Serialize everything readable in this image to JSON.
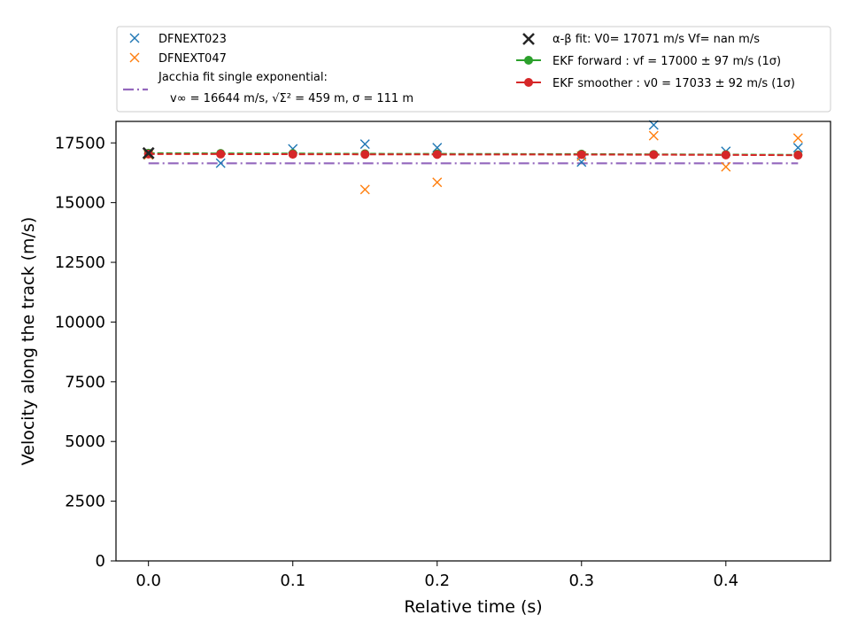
{
  "chart_data": {
    "type": "scatter",
    "xlabel": "Relative time (s)",
    "ylabel": "Velocity along the track (m/s)",
    "xlim": [
      -0.0225,
      0.4725
    ],
    "ylim": [
      0,
      18400
    ],
    "xticks": [
      0.0,
      0.1,
      0.2,
      0.3,
      0.4
    ],
    "xtick_labels": [
      "0.0",
      "0.1",
      "0.2",
      "0.3",
      "0.4"
    ],
    "yticks": [
      0,
      2500,
      5000,
      7500,
      10000,
      12500,
      15000,
      17500
    ],
    "ytick_labels": [
      "0",
      "2500",
      "5000",
      "7500",
      "10000",
      "12500",
      "15000",
      "17500"
    ],
    "grid": false,
    "legend_position": "above plot",
    "series": [
      {
        "name": "DFNEXT023",
        "kind": "cross-marker",
        "color": "#1f77b4",
        "x": [
          0.0,
          0.05,
          0.1,
          0.15,
          0.2,
          0.3,
          0.35,
          0.4,
          0.45
        ],
        "y": [
          17050,
          16650,
          17250,
          17450,
          17300,
          16700,
          18250,
          17150,
          17300
        ]
      },
      {
        "name": "DFNEXT047",
        "kind": "cross-marker",
        "color": "#ff7f0e",
        "x": [
          0.0,
          0.15,
          0.2,
          0.3,
          0.35,
          0.4,
          0.45
        ],
        "y": [
          17000,
          15550,
          15850,
          16950,
          17800,
          16500,
          17700
        ]
      },
      {
        "name": "Jacchia fit single exponential:",
        "name_line2": "v∞ = 16644 m/s, √Σ² = 459 m, σ = 111 m",
        "kind": "dashdot-line",
        "color": "#9467bd",
        "x": [
          0.0,
          0.45
        ],
        "y": [
          16644,
          16644
        ]
      },
      {
        "name": "α-β fit: V0= 17071 m/s   Vf= nan m/s",
        "kind": "big-cross-marker",
        "color": "#262626",
        "x": [
          0.0
        ],
        "y": [
          17071
        ]
      },
      {
        "name": "EKF forward : vf =  17000 ± 97 m/s (1σ)",
        "kind": "dashed-line-dot",
        "color": "#2ca02c",
        "x": [
          0.0,
          0.05,
          0.1,
          0.15,
          0.2,
          0.3,
          0.35,
          0.4,
          0.45
        ],
        "y": [
          17070,
          17060,
          17055,
          17045,
          17040,
          17030,
          17020,
          17010,
          17000
        ]
      },
      {
        "name": "EKF smoother : v0 =  17033 ± 92 m/s (1σ)",
        "kind": "dashed-line-dot",
        "color": "#d62728",
        "x": [
          0.0,
          0.05,
          0.1,
          0.15,
          0.2,
          0.3,
          0.35,
          0.4,
          0.45
        ],
        "y": [
          17033,
          17030,
          17025,
          17020,
          17015,
          17010,
          17005,
          16995,
          16985
        ]
      }
    ]
  }
}
